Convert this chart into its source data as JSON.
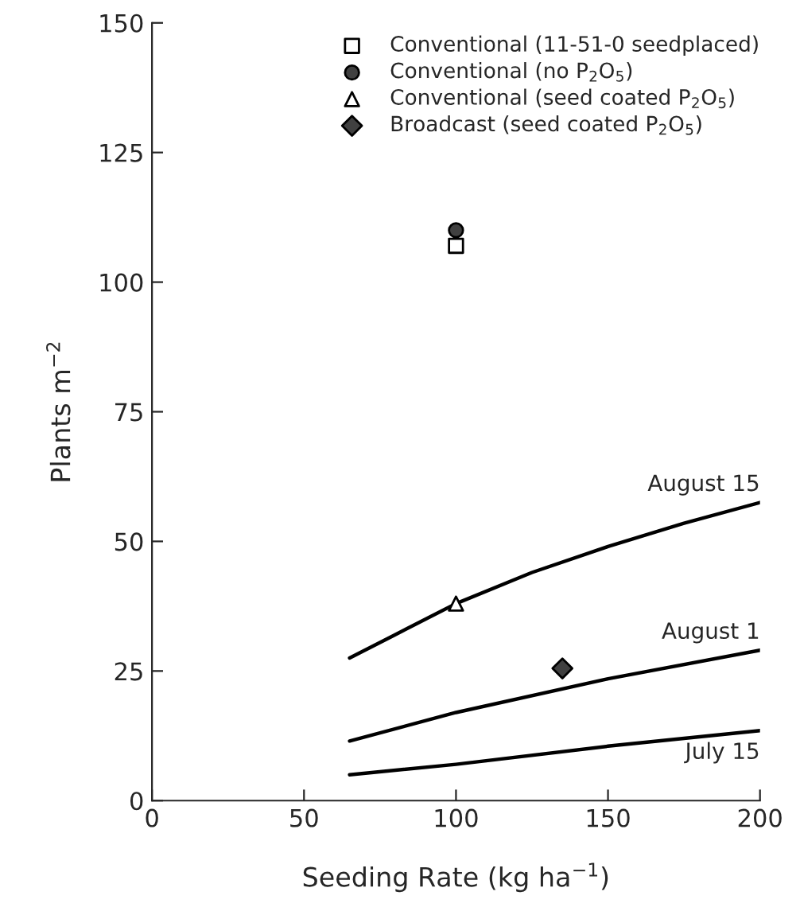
{
  "chart_data": {
    "type": "line",
    "xlabel": "Seeding Rate (kg ha$^{−1}$)",
    "ylabel": "Plants m$^{−2}$",
    "xlim": [
      0,
      200
    ],
    "xticks": [
      0,
      50,
      100,
      150,
      200
    ],
    "ylim": [
      0,
      150
    ],
    "yticks": [
      0,
      25,
      50,
      75,
      100,
      125,
      150
    ],
    "grid": false,
    "legend": "top right",
    "series": [
      {
        "name": "Conventional (11-51-0 seedplaced)",
        "type": "scatter",
        "marker": "square",
        "color": "#ffffff",
        "x": [
          100
        ],
        "values": [
          107
        ]
      },
      {
        "name": "Conventional (no P$_{2}$O$_{5}$)",
        "type": "scatter",
        "marker": "circle",
        "color": "#404040",
        "x": [
          100
        ],
        "values": [
          110
        ]
      },
      {
        "name": "Conventional (seed coated P$_{2}$O$_{5}$)",
        "type": "scatter",
        "marker": "triangle",
        "color": "#ffffff",
        "x": [
          100
        ],
        "values": [
          38
        ]
      },
      {
        "name": "Broadcast (seed coated P$_{2}$O$_{5}$)",
        "type": "scatter",
        "marker": "diamond",
        "color": "#404040",
        "x": [
          135
        ],
        "values": [
          25.5
        ]
      },
      {
        "name": "August 15",
        "color": "#000000",
        "x": [
          65,
          80,
          100,
          125,
          150,
          175,
          200
        ],
        "values": [
          27.5,
          32,
          38,
          44,
          49,
          53.5,
          57.5
        ]
      },
      {
        "name": "August 1",
        "color": "#000000",
        "x": [
          65,
          100,
          150,
          200
        ],
        "values": [
          11.5,
          17,
          23.5,
          29
        ]
      },
      {
        "name": "July 15",
        "color": "#000000",
        "x": [
          65,
          100,
          150,
          200
        ],
        "values": [
          5,
          7,
          10.5,
          13.5
        ]
      }
    ]
  }
}
